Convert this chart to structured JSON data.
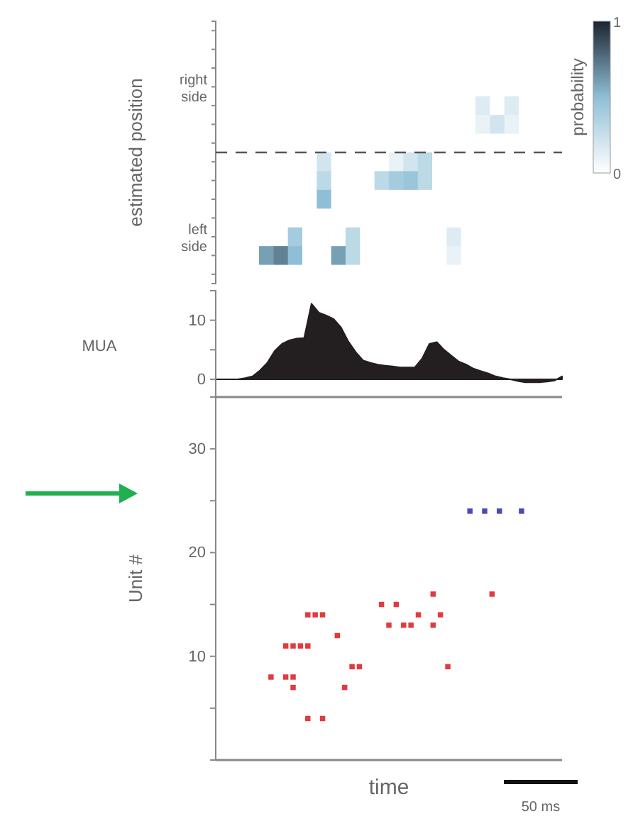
{
  "chart_data": [
    {
      "type": "heatmap",
      "ylabel": "estimated position",
      "clabel": "probability",
      "tick_labels": "y",
      "categories": [
        null,
        null,
        null,
        null,
        null,
        null,
        null,
        null,
        null,
        null,
        null,
        null,
        null,
        null,
        null,
        null,
        null,
        null,
        null,
        null,
        null,
        null,
        null,
        null
      ],
      "y_categories": [
        null,
        null,
        null,
        "right side",
        null,
        null,
        null,
        null,
        null,
        null,
        null,
        "left side",
        null,
        null
      ],
      "cells": [
        [
          0,
          0,
          0,
          0,
          0,
          0,
          0,
          0,
          0,
          0,
          0,
          0,
          0,
          0,
          0,
          0,
          0,
          0,
          0,
          0,
          0,
          0,
          0,
          0
        ],
        [
          0,
          0,
          0,
          0,
          0,
          0,
          0,
          0,
          0,
          0,
          0,
          0,
          0,
          0,
          0,
          0,
          0,
          0,
          0,
          0,
          0,
          0,
          0,
          0
        ],
        [
          0,
          0,
          0,
          0,
          0,
          0,
          0,
          0,
          0,
          0,
          0,
          0,
          0,
          0,
          0,
          0,
          0,
          0,
          0,
          0,
          0,
          0,
          0,
          0
        ],
        [
          0,
          0,
          0,
          0,
          0,
          0,
          0,
          0,
          0,
          0,
          0,
          0,
          0,
          0,
          0,
          0,
          0,
          0,
          0,
          0,
          0,
          0,
          0,
          0
        ],
        [
          0,
          0,
          0,
          0,
          0,
          0,
          0,
          0,
          0,
          0,
          0,
          0,
          0,
          0,
          0,
          0,
          0,
          0,
          0.15,
          0,
          0.15,
          0,
          0,
          0
        ],
        [
          0,
          0,
          0,
          0,
          0,
          0,
          0,
          0,
          0,
          0,
          0,
          0,
          0,
          0,
          0,
          0,
          0,
          0,
          0.1,
          0.2,
          0.1,
          0,
          0,
          0
        ],
        [
          0,
          0,
          0,
          0,
          0,
          0,
          0,
          0,
          0,
          0,
          0,
          0,
          0,
          0,
          0,
          0,
          0,
          0,
          0,
          0,
          0,
          0,
          0,
          0
        ],
        [
          0,
          0,
          0,
          0,
          0,
          0,
          0,
          0.2,
          0,
          0,
          0,
          0,
          0.1,
          0.2,
          0.3,
          0,
          0,
          0,
          0,
          0,
          0,
          0,
          0,
          0
        ],
        [
          0,
          0,
          0,
          0,
          0,
          0,
          0,
          0.3,
          0,
          0,
          0,
          0.3,
          0.4,
          0.45,
          0.3,
          0,
          0,
          0,
          0,
          0,
          0,
          0,
          0,
          0
        ],
        [
          0,
          0,
          0,
          0,
          0,
          0,
          0,
          0.5,
          0,
          0,
          0,
          0,
          0,
          0,
          0,
          0,
          0,
          0,
          0,
          0,
          0,
          0,
          0,
          0
        ],
        [
          0,
          0,
          0,
          0,
          0,
          0,
          0,
          0,
          0,
          0,
          0,
          0,
          0,
          0,
          0,
          0,
          0,
          0,
          0,
          0,
          0,
          0,
          0,
          0
        ],
        [
          0,
          0,
          0,
          0,
          0,
          0.4,
          0,
          0,
          0,
          0.3,
          0,
          0,
          0,
          0,
          0,
          0,
          0.15,
          0,
          0,
          0,
          0,
          0,
          0,
          0
        ],
        [
          0,
          0,
          0,
          0.6,
          0.7,
          0.5,
          0,
          0,
          0.6,
          0.3,
          0,
          0,
          0,
          0,
          0,
          0,
          0.1,
          0,
          0,
          0,
          0,
          0,
          0,
          0
        ],
        [
          0,
          0,
          0,
          0,
          0,
          0,
          0,
          0,
          0,
          0,
          0,
          0,
          0,
          0,
          0,
          0,
          0,
          0,
          0,
          0,
          0,
          0,
          0,
          0
        ]
      ],
      "clim": [
        0,
        1
      ],
      "cticks": [
        0,
        1
      ]
    },
    {
      "type": "area",
      "ylabel": "MUA",
      "tick_labels": "y",
      "ylim": [
        -3,
        15
      ],
      "yticks": [
        0,
        {
          "value": 5,
          "label": null
        },
        10
      ],
      "categories": [
        null,
        null,
        null,
        null,
        null,
        null,
        null,
        null,
        null,
        null,
        null,
        null,
        null,
        null,
        null,
        null,
        null,
        null,
        null,
        null,
        null,
        null,
        null,
        null,
        null,
        null,
        null,
        null,
        null,
        null,
        null,
        null,
        null,
        null,
        null,
        null,
        null,
        null,
        null,
        null,
        null,
        null,
        null,
        null,
        null,
        null,
        null,
        null
      ],
      "series": [
        {
          "color": "#231f20",
          "values": [
            0,
            0,
            0,
            0,
            0.2,
            0.5,
            1.5,
            2.8,
            4.8,
            6,
            6.6,
            6.9,
            7,
            12.8,
            11.3,
            10.8,
            10.2,
            8.8,
            6.4,
            4.6,
            3.2,
            2.8,
            2.5,
            2.3,
            2.2,
            2,
            2,
            2,
            3.5,
            6,
            6.3,
            5,
            4,
            3,
            2.5,
            1.8,
            1.4,
            1,
            0.5,
            0.2,
            0,
            -0.3,
            -0.5,
            -0.5,
            -0.5,
            -0.4,
            -0.2,
            0.5
          ]
        }
      ]
    },
    {
      "type": "scatter",
      "ylabel": "Unit #",
      "xlabel": "time",
      "tick_labels": "y",
      "ylim": [
        0,
        35
      ],
      "yticks": [
        {
          "value": 5,
          "label": null
        },
        10,
        {
          "value": 15,
          "label": null
        },
        20,
        {
          "value": 25,
          "label": null
        },
        30
      ],
      "marker": "square",
      "annotations": [
        "50 ms"
      ],
      "categories": [
        null,
        null,
        null,
        null,
        null,
        null,
        null,
        null,
        null,
        null,
        null,
        null,
        null,
        null,
        null,
        null,
        null,
        null,
        null,
        null,
        null,
        null,
        null,
        null,
        null,
        null,
        null,
        null,
        null,
        null,
        null,
        null,
        null,
        null,
        null,
        null,
        null,
        null,
        null,
        null,
        null,
        null,
        null,
        null,
        null,
        null,
        null
      ],
      "series": [
        {
          "color": "#e23a3f",
          "values": [
            null,
            null,
            null,
            null,
            null,
            null,
            null,
            8,
            null,
            11,
            11,
            11,
            14,
            14,
            14,
            null,
            12,
            7,
            9,
            9,
            null,
            null,
            15,
            13,
            15,
            13,
            13,
            14,
            null,
            16,
            14,
            9,
            null,
            null,
            null,
            null,
            null,
            16,
            null,
            null,
            null,
            null,
            null,
            null,
            null,
            null,
            null
          ]
        },
        {
          "color": "#e23a3f",
          "values": [
            null,
            null,
            null,
            null,
            null,
            null,
            null,
            null,
            null,
            8,
            8,
            null,
            11,
            null,
            4,
            null,
            null,
            null,
            null,
            null,
            null,
            null,
            null,
            null,
            null,
            null,
            null,
            null,
            null,
            13,
            null,
            null,
            null,
            null,
            null,
            null,
            null,
            null,
            null,
            null,
            null,
            null,
            null,
            null,
            null,
            null,
            null
          ]
        },
        {
          "color": "#e23a3f",
          "values": [
            null,
            null,
            null,
            null,
            null,
            null,
            null,
            null,
            null,
            null,
            7,
            null,
            4,
            null,
            null,
            null,
            null,
            null,
            null,
            null,
            null,
            null,
            null,
            null,
            null,
            null,
            null,
            null,
            null,
            null,
            null,
            null,
            null,
            null,
            null,
            null,
            null,
            null,
            null,
            null,
            null,
            null,
            null,
            null,
            null,
            null,
            null
          ]
        },
        {
          "color": "#4a4ab8",
          "values": [
            null,
            null,
            null,
            null,
            null,
            null,
            null,
            null,
            null,
            null,
            null,
            null,
            null,
            null,
            null,
            null,
            null,
            null,
            null,
            null,
            null,
            null,
            null,
            null,
            null,
            null,
            null,
            null,
            null,
            null,
            null,
            null,
            null,
            null,
            24,
            null,
            24,
            null,
            24,
            null,
            null,
            24,
            null,
            null,
            null,
            null,
            null
          ]
        }
      ]
    }
  ]
}
